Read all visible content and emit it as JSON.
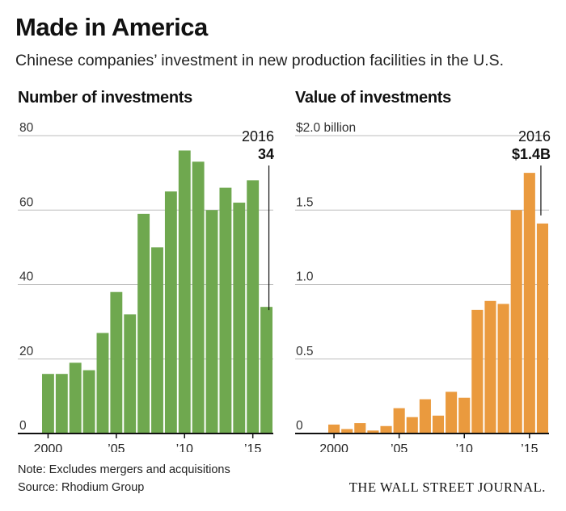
{
  "title": "Made in America",
  "subtitle": "Chinese companies’ investment in new production facilities in the U.S.",
  "note": "Note: Excludes mergers and acquisitions",
  "source": "Source: Rhodium Group",
  "logo": "THE WALL STREET JOURNAL.",
  "colors": {
    "left_bars": "#6fa84f",
    "right_bars": "#ea9a3e",
    "grid": "#bdbdbd",
    "axis": "#111111"
  },
  "chart_data": [
    {
      "type": "bar",
      "title": "Number of investments",
      "x": [
        2000,
        2001,
        2002,
        2003,
        2004,
        2005,
        2006,
        2007,
        2008,
        2009,
        2010,
        2011,
        2012,
        2013,
        2014,
        2015,
        2016
      ],
      "values": [
        16,
        16,
        19,
        17,
        27,
        38,
        32,
        59,
        50,
        65,
        76,
        73,
        60,
        66,
        62,
        68,
        34
      ],
      "ylim": [
        0,
        80
      ],
      "y_ticks": [
        0,
        20,
        40,
        60,
        80
      ],
      "y_tick_labels": [
        "0",
        "20",
        "40",
        "60",
        "80"
      ],
      "x_ticks": [
        2000,
        2005,
        2010,
        2015
      ],
      "x_tick_labels": [
        "2000",
        "’05",
        "’10",
        "’15"
      ],
      "annotation": {
        "x": 2016,
        "year": "2016",
        "value": "34"
      },
      "grid": true
    },
    {
      "type": "bar",
      "title": "Value of investments",
      "x": [
        2000,
        2001,
        2002,
        2003,
        2004,
        2005,
        2006,
        2007,
        2008,
        2009,
        2010,
        2011,
        2012,
        2013,
        2014,
        2015,
        2016
      ],
      "values": [
        0.06,
        0.03,
        0.07,
        0.02,
        0.05,
        0.17,
        0.11,
        0.23,
        0.12,
        0.28,
        0.24,
        0.83,
        0.89,
        0.87,
        1.5,
        1.75,
        1.41
      ],
      "ylim": [
        0,
        2.0
      ],
      "y_ticks": [
        0,
        0.5,
        1.0,
        1.5,
        2.0
      ],
      "y_tick_labels": [
        "0",
        "0.5",
        "1.0",
        "1.5",
        "$2.0 billion"
      ],
      "x_ticks": [
        2000,
        2005,
        2010,
        2015
      ],
      "x_tick_labels": [
        "2000",
        "’05",
        "’10",
        "’15"
      ],
      "annotation": {
        "x": 2016,
        "year": "2016",
        "value": "$1.4B"
      },
      "grid": true
    }
  ]
}
